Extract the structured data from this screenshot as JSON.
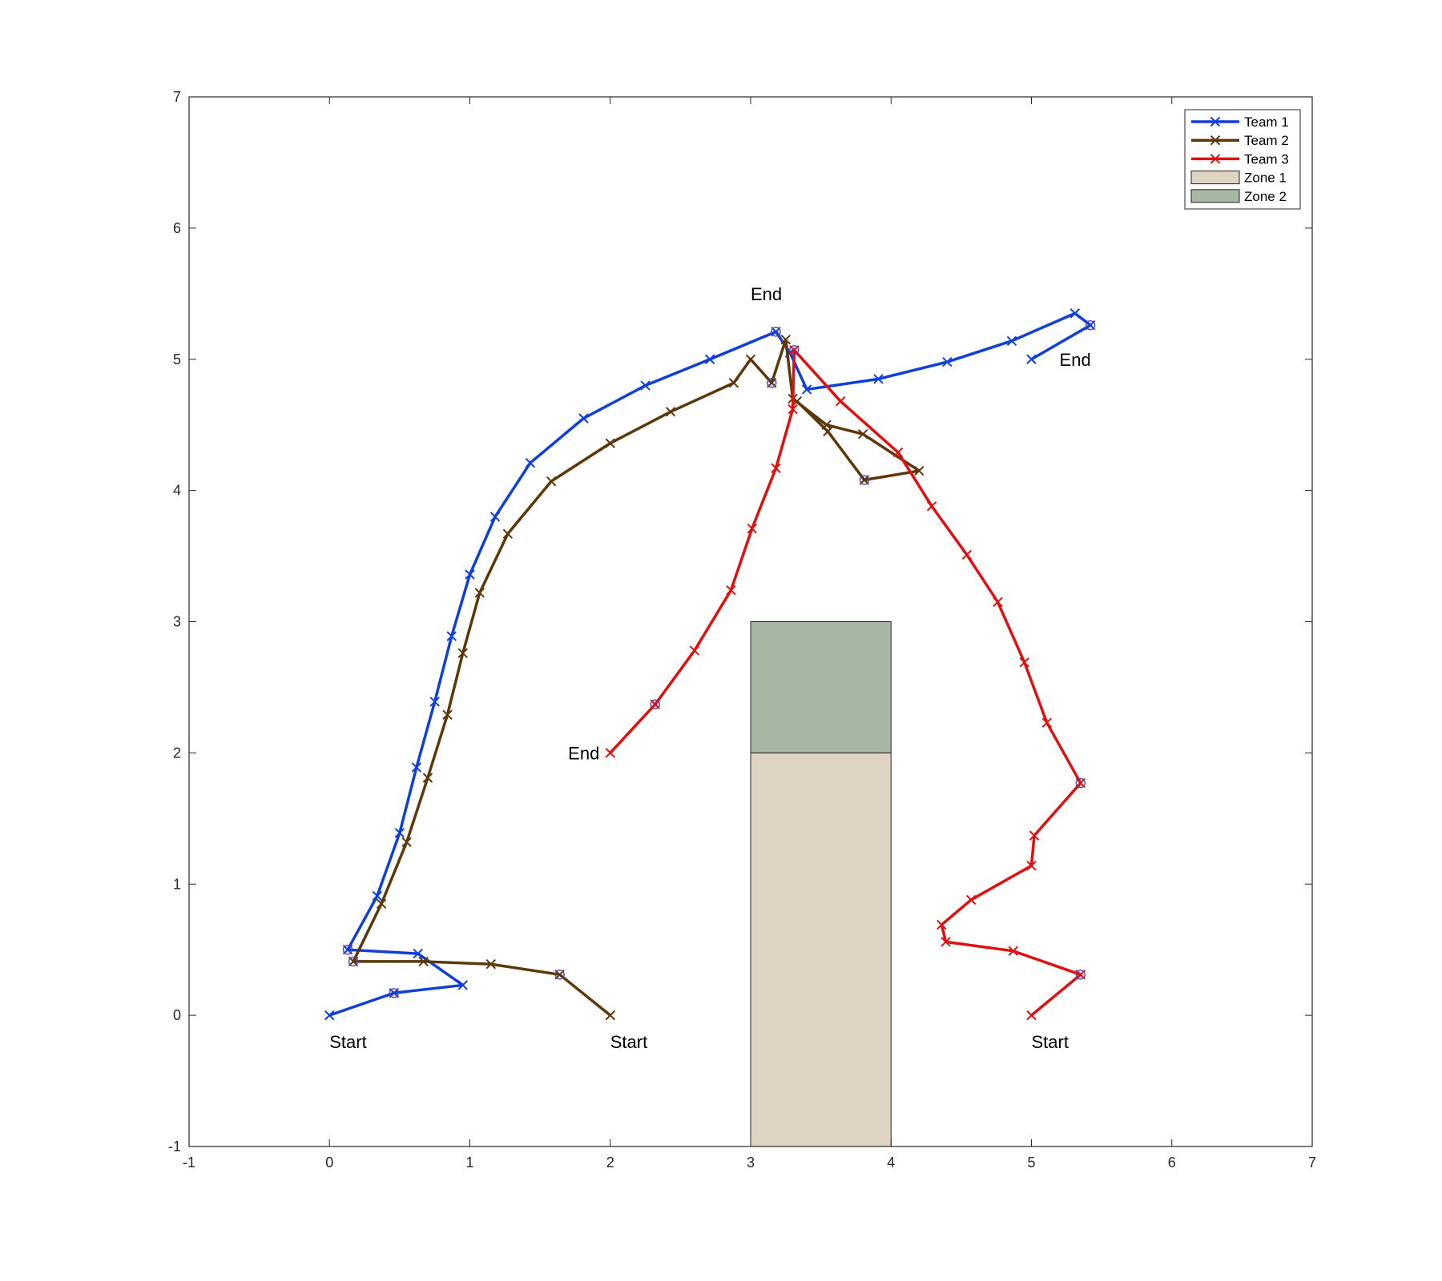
{
  "chart_data": {
    "type": "line",
    "title": "",
    "xlabel": "",
    "ylabel": "",
    "xlim": [
      -1,
      7
    ],
    "ylim": [
      -1,
      7
    ],
    "xticks": [
      "-1",
      "0",
      "1",
      "2",
      "3",
      "4",
      "5",
      "6",
      "7"
    ],
    "yticks": [
      "-1",
      "0",
      "1",
      "2",
      "3",
      "4",
      "5",
      "6",
      "7"
    ],
    "grid": false,
    "legend_position": "top-right",
    "series": [
      {
        "name": "Team 1",
        "color": "#0f3fd9",
        "marker": "x",
        "points": [
          [
            0,
            0
          ],
          [
            0.46,
            0.17
          ],
          [
            0.95,
            0.23
          ],
          [
            0.63,
            0.47
          ],
          [
            0.13,
            0.5
          ],
          [
            0.34,
            0.91
          ],
          [
            0.5,
            1.39
          ],
          [
            0.62,
            1.89
          ],
          [
            0.75,
            2.39
          ],
          [
            0.87,
            2.89
          ],
          [
            1.0,
            3.36
          ],
          [
            1.18,
            3.8
          ],
          [
            1.43,
            4.21
          ],
          [
            1.81,
            4.55
          ],
          [
            2.25,
            4.8
          ],
          [
            2.71,
            5.0
          ],
          [
            3.18,
            5.21
          ],
          [
            3.28,
            5.05
          ],
          [
            3.4,
            4.77
          ],
          [
            3.91,
            4.85
          ],
          [
            4.4,
            4.98
          ],
          [
            4.86,
            5.14
          ],
          [
            5.31,
            5.35
          ],
          [
            5.42,
            5.26
          ],
          [
            5.0,
            5.0
          ]
        ],
        "circled_points": [
          [
            0.46,
            0.17
          ],
          [
            0.13,
            0.5
          ],
          [
            3.18,
            5.21
          ],
          [
            5.42,
            5.26
          ]
        ]
      },
      {
        "name": "Team 2",
        "color": "#5c3808",
        "marker": "x",
        "points": [
          [
            2.0,
            0
          ],
          [
            1.64,
            0.31
          ],
          [
            1.15,
            0.39
          ],
          [
            0.67,
            0.41
          ],
          [
            0.17,
            0.41
          ],
          [
            0.37,
            0.85
          ],
          [
            0.55,
            1.32
          ],
          [
            0.7,
            1.81
          ],
          [
            0.84,
            2.29
          ],
          [
            0.95,
            2.76
          ],
          [
            1.07,
            3.22
          ],
          [
            1.27,
            3.67
          ],
          [
            1.58,
            4.07
          ],
          [
            2.0,
            4.36
          ],
          [
            2.43,
            4.6
          ],
          [
            2.88,
            4.82
          ],
          [
            3.0,
            5.0
          ],
          [
            3.15,
            4.82
          ],
          [
            3.25,
            5.15
          ],
          [
            3.3,
            4.7
          ],
          [
            3.54,
            4.5
          ],
          [
            3.8,
            4.43
          ],
          [
            4.2,
            4.15
          ],
          [
            3.81,
            4.08
          ],
          [
            3.55,
            4.45
          ],
          [
            3.33,
            4.68
          ]
        ],
        "circled_points": [
          [
            1.64,
            0.31
          ],
          [
            0.17,
            0.41
          ],
          [
            3.15,
            4.82
          ],
          [
            3.81,
            4.08
          ]
        ]
      },
      {
        "name": "Team 3",
        "color": "#e01010",
        "marker": "x",
        "points": [
          [
            5.0,
            0
          ],
          [
            5.35,
            0.31
          ],
          [
            4.87,
            0.49
          ],
          [
            4.39,
            0.56
          ],
          [
            4.36,
            0.69
          ],
          [
            4.57,
            0.88
          ],
          [
            5.0,
            1.14
          ],
          [
            5.02,
            1.37
          ],
          [
            5.35,
            1.77
          ],
          [
            5.11,
            2.23
          ],
          [
            4.95,
            2.69
          ],
          [
            4.76,
            3.15
          ],
          [
            4.54,
            3.51
          ],
          [
            4.29,
            3.88
          ],
          [
            4.05,
            4.29
          ],
          [
            3.64,
            4.68
          ],
          [
            3.31,
            5.07
          ],
          [
            3.3,
            4.62
          ],
          [
            3.18,
            4.17
          ],
          [
            3.01,
            3.71
          ],
          [
            2.86,
            3.24
          ],
          [
            2.6,
            2.78
          ],
          [
            2.32,
            2.37
          ],
          [
            2.0,
            2.0
          ]
        ],
        "circled_points": [
          [
            5.35,
            0.31
          ],
          [
            5.35,
            1.77
          ],
          [
            3.31,
            5.07
          ],
          [
            2.32,
            2.37
          ]
        ]
      }
    ],
    "zones": [
      {
        "name": "Zone 1",
        "color": "#dfd3c3",
        "x": [
          3,
          4
        ],
        "y": [
          -1,
          2
        ]
      },
      {
        "name": "Zone 2",
        "color": "#a7b7a3",
        "x": [
          3,
          4
        ],
        "y": [
          2,
          3
        ]
      }
    ],
    "annotations": [
      {
        "text": "Start",
        "x": 0.0,
        "y": -0.2
      },
      {
        "text": "Start",
        "x": 2.0,
        "y": -0.2
      },
      {
        "text": "Start",
        "x": 5.0,
        "y": -0.2
      },
      {
        "text": "End",
        "x": 3.0,
        "y": 5.5
      },
      {
        "text": "End",
        "x": 5.2,
        "y": 5.0
      },
      {
        "text": "End",
        "x": 1.7,
        "y": 2.0
      }
    ]
  }
}
